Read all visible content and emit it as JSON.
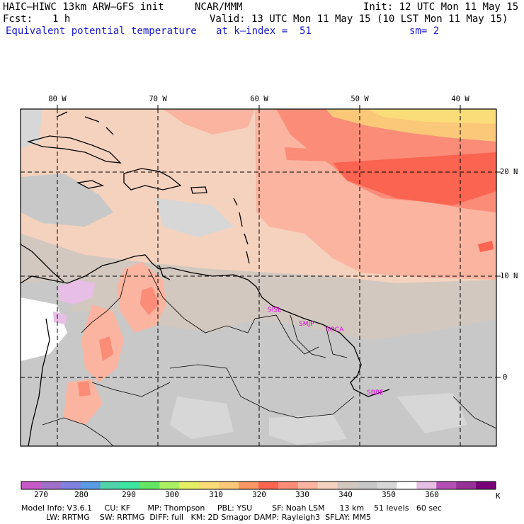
{
  "header": {
    "model": "HAIC–HIWC 13km ARW–GFS init",
    "org": "NCAR/MMM",
    "init": "Init: 12 UTC Mon 11 May 15",
    "fcst_label": "Fcst:",
    "fcst_value": "1 h",
    "valid": "Valid: 13 UTC Mon 11 May 15 (10 LST Mon 11 May 15)",
    "field": "Equivalent potential temperature",
    "level": "at k–index =  51",
    "smooth": "sm= 2"
  },
  "map": {
    "lon_labels": [
      "80 W",
      "70 W",
      "60 W",
      "50 W",
      "40 W"
    ],
    "lat_labels": [
      "20 N",
      "10 N",
      "0"
    ],
    "stations": [
      "SISL",
      "SMJP",
      "SOCA",
      "SBBE"
    ]
  },
  "colorbar": {
    "unit": "K",
    "tick_labels": [
      "270",
      "280",
      "290",
      "300",
      "310",
      "320",
      "330",
      "340",
      "350",
      "360"
    ],
    "colors": [
      "#c85ac8",
      "#a070c8",
      "#8080e0",
      "#5a9be6",
      "#50d2aa",
      "#3ce6a0",
      "#64e664",
      "#aaf064",
      "#e6f064",
      "#fadc78",
      "#fac878",
      "#fa9664",
      "#fa6450",
      "#fa8c78",
      "#fab4a0",
      "#f5d2be",
      "#d2c8c0",
      "#c8c8c8",
      "#d7d7d7",
      "#ffffff",
      "#e6bee6",
      "#b450b4",
      "#963296",
      "#780078"
    ]
  },
  "footer": {
    "line1": "Model Info: V3.6.1     CU: KF       MP: Thompson     PBL: YSU        SF: Noah LSM      13 km    51 levels   60 sec",
    "line2": "          LW: RRTMG    SW: RRTMG  DIFF: full   KM: 2D Smagor DAMP: Rayleigh3  SFLAY: MM5"
  }
}
